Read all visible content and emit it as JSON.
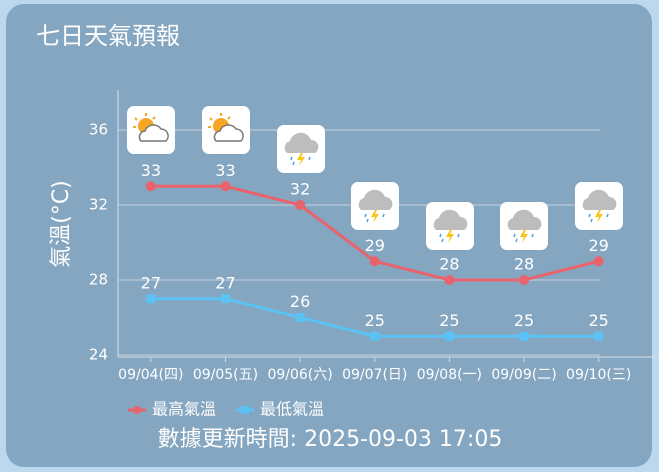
{
  "chart_data": {
    "type": "line",
    "title": "七日天氣預報",
    "y_label": "氣溫(°C)",
    "categories": [
      "09/04(四)",
      "09/05(五)",
      "09/06(六)",
      "09/07(日)",
      "09/08(一)",
      "09/09(二)",
      "09/10(三)"
    ],
    "series": [
      {
        "name": "最高氣溫",
        "color": "#e8636b",
        "values": [
          33,
          33,
          32,
          29,
          28,
          28,
          29
        ]
      },
      {
        "name": "最低氣溫",
        "color": "#5cc1f5",
        "values": [
          27,
          27,
          26,
          25,
          25,
          25,
          25
        ]
      }
    ],
    "ylim": [
      24,
      38
    ],
    "yticks": [
      24,
      28,
      32,
      36
    ],
    "grid": true,
    "footnote": "數據更新時間: 2025-09-03 17:05"
  }
}
